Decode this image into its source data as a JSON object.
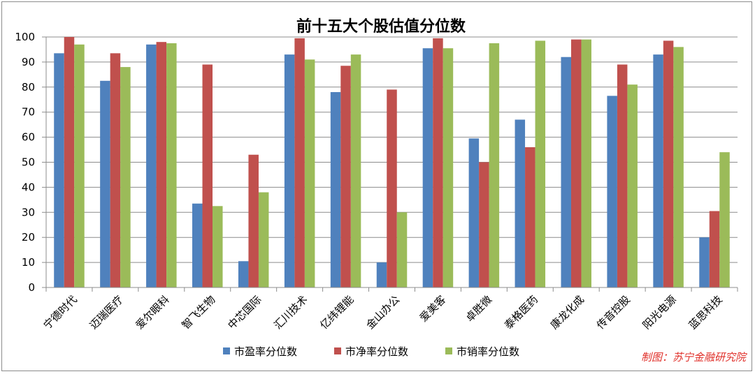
{
  "chart_data": {
    "type": "bar",
    "title": "前十五大个股估值分位数",
    "xlabel": "",
    "ylabel": "",
    "ylim": [
      0,
      100
    ],
    "yticks": [
      0,
      10,
      20,
      30,
      40,
      50,
      60,
      70,
      80,
      90,
      100
    ],
    "grid": true,
    "legend_position": "bottom",
    "categories": [
      "宁德时代",
      "迈瑞医疗",
      "爱尔眼科",
      "智飞生物",
      "中芯国际",
      "汇川技术",
      "亿纬锂能",
      "金山办公",
      "爱美客",
      "卓胜微",
      "泰格医药",
      "康龙化成",
      "传音控股",
      "阳光电源",
      "蓝思科技"
    ],
    "series": [
      {
        "name": "市盈率分位数",
        "color": "#4f81bd",
        "values": [
          93.5,
          82.5,
          97,
          33.5,
          10.5,
          93,
          78,
          10,
          95.5,
          59.5,
          67,
          92,
          76.5,
          93,
          20
        ]
      },
      {
        "name": "市净率分位数",
        "color": "#c0504d",
        "values": [
          100,
          93.5,
          98,
          89,
          53,
          99.5,
          88.5,
          79,
          99.5,
          50,
          56,
          99,
          89,
          98.5,
          30.5
        ]
      },
      {
        "name": "市销率分位数",
        "color": "#9bbb59",
        "values": [
          97,
          88,
          97.5,
          32.5,
          38,
          91,
          93,
          30,
          95.5,
          97.5,
          98.5,
          99,
          81,
          96,
          54
        ]
      }
    ],
    "credit": "制图：苏宁金融研究院"
  }
}
